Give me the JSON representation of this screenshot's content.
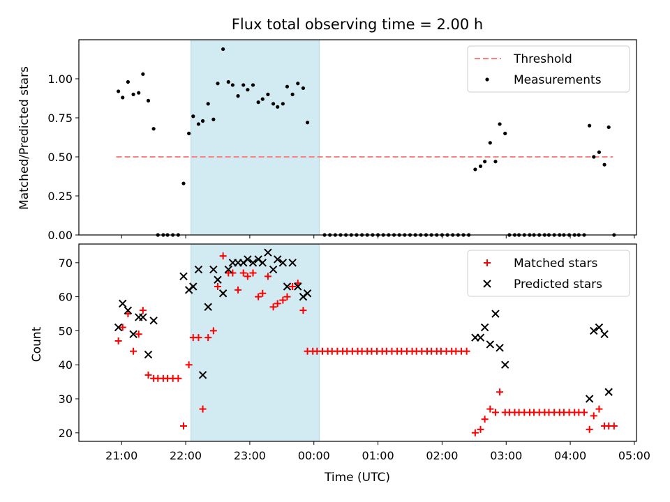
{
  "figure": {
    "title": "Flux total observing time = 2.00 h"
  },
  "colors": {
    "threshold": "#ff7f7f",
    "span": "#add8e6",
    "matched": "#ff0000",
    "predicted": "#000000",
    "points": "#000000"
  },
  "chart_data": [
    {
      "type": "scatter",
      "ylabel": "Matched/Predicted stars",
      "ylim": [
        0,
        1.25
      ],
      "yticks": [
        "0.00",
        "0.25",
        "0.50",
        "0.75",
        "1.00"
      ],
      "xticks": [
        "21:00",
        "22:00",
        "23:00",
        "00:00",
        "01:00",
        "02:00",
        "03:00",
        "04:00",
        "05:00"
      ],
      "highlight_span": [
        "22:05",
        "00:05"
      ],
      "threshold": {
        "name": "Threshold",
        "y": 0.5,
        "x_range": [
          "20:55",
          "04:40"
        ]
      },
      "legend": {
        "position": "upper right",
        "entries": [
          "Threshold",
          "Measurements"
        ]
      },
      "series": [
        {
          "name": "Measurements",
          "points": [
            [
              "20:57",
              0.92
            ],
            [
              "21:01",
              0.88
            ],
            [
              "21:06",
              0.98
            ],
            [
              "21:11",
              0.9
            ],
            [
              "21:16",
              0.91
            ],
            [
              "21:20",
              1.03
            ],
            [
              "21:25",
              0.86
            ],
            [
              "21:30",
              0.68
            ],
            [
              "21:34",
              0
            ],
            [
              "21:39",
              0
            ],
            [
              "21:43",
              0
            ],
            [
              "21:48",
              0
            ],
            [
              "21:53",
              0
            ],
            [
              "21:58",
              0.33
            ],
            [
              "22:03",
              0.65
            ],
            [
              "22:07",
              0.76
            ],
            [
              "22:12",
              0.71
            ],
            [
              "22:16",
              0.73
            ],
            [
              "22:21",
              0.84
            ],
            [
              "22:26",
              0.74
            ],
            [
              "22:30",
              0.97
            ],
            [
              "22:35",
              1.19
            ],
            [
              "22:40",
              0.98
            ],
            [
              "22:44",
              0.96
            ],
            [
              "22:49",
              0.89
            ],
            [
              "22:54",
              0.96
            ],
            [
              "22:58",
              0.93
            ],
            [
              "23:03",
              0.96
            ],
            [
              "23:08",
              0.85
            ],
            [
              "23:12",
              0.87
            ],
            [
              "23:17",
              0.9
            ],
            [
              "23:22",
              0.84
            ],
            [
              "23:26",
              0.82
            ],
            [
              "23:31",
              0.84
            ],
            [
              "23:35",
              0.95
            ],
            [
              "23:40",
              0.9
            ],
            [
              "23:45",
              0.97
            ],
            [
              "23:50",
              0.94
            ],
            [
              "23:54",
              0.72
            ],
            [
              "00:10",
              0
            ],
            [
              "00:15",
              0
            ],
            [
              "00:20",
              0
            ],
            [
              "00:25",
              0
            ],
            [
              "00:30",
              0
            ],
            [
              "00:35",
              0
            ],
            [
              "00:40",
              0
            ],
            [
              "00:45",
              0
            ],
            [
              "00:50",
              0
            ],
            [
              "00:55",
              0
            ],
            [
              "01:00",
              0
            ],
            [
              "01:05",
              0
            ],
            [
              "01:10",
              0
            ],
            [
              "01:15",
              0
            ],
            [
              "01:20",
              0
            ],
            [
              "01:25",
              0
            ],
            [
              "01:30",
              0
            ],
            [
              "01:35",
              0
            ],
            [
              "01:40",
              0
            ],
            [
              "01:45",
              0
            ],
            [
              "01:50",
              0
            ],
            [
              "01:55",
              0
            ],
            [
              "02:00",
              0
            ],
            [
              "02:05",
              0
            ],
            [
              "02:10",
              0
            ],
            [
              "02:15",
              0
            ],
            [
              "02:20",
              0
            ],
            [
              "02:25",
              0
            ],
            [
              "02:31",
              0.42
            ],
            [
              "02:36",
              0.44
            ],
            [
              "02:40",
              0.47
            ],
            [
              "02:45",
              0.59
            ],
            [
              "02:50",
              0.47
            ],
            [
              "02:54",
              0.71
            ],
            [
              "02:59",
              0.65
            ],
            [
              "03:03",
              0
            ],
            [
              "03:08",
              0
            ],
            [
              "03:12",
              0
            ],
            [
              "03:17",
              0
            ],
            [
              "03:22",
              0
            ],
            [
              "03:26",
              0
            ],
            [
              "03:31",
              0
            ],
            [
              "03:36",
              0
            ],
            [
              "03:40",
              0
            ],
            [
              "03:45",
              0
            ],
            [
              "03:50",
              0
            ],
            [
              "03:54",
              0
            ],
            [
              "03:59",
              0
            ],
            [
              "04:04",
              0
            ],
            [
              "04:08",
              0
            ],
            [
              "04:13",
              0
            ],
            [
              "04:18",
              0.7
            ],
            [
              "04:22",
              0.5
            ],
            [
              "04:27",
              0.53
            ],
            [
              "04:32",
              0.45
            ],
            [
              "04:36",
              0.69
            ],
            [
              "04:41",
              0
            ]
          ]
        }
      ]
    },
    {
      "type": "scatter",
      "xlabel": "Time (UTC)",
      "ylabel": "Count",
      "ylim": [
        17.5,
        75.5
      ],
      "yticks": [
        "20",
        "30",
        "40",
        "50",
        "60",
        "70"
      ],
      "xticks": [
        "21:00",
        "22:00",
        "23:00",
        "00:00",
        "01:00",
        "02:00",
        "03:00",
        "04:00",
        "05:00"
      ],
      "highlight_span": [
        "22:05",
        "00:05"
      ],
      "legend": {
        "position": "upper right",
        "entries": [
          "Matched stars",
          "Predicted stars"
        ]
      },
      "series": [
        {
          "name": "Matched stars",
          "points": [
            [
              "20:57",
              47
            ],
            [
              "21:01",
              51
            ],
            [
              "21:06",
              55
            ],
            [
              "21:11",
              44
            ],
            [
              "21:16",
              49
            ],
            [
              "21:20",
              56
            ],
            [
              "21:25",
              37
            ],
            [
              "21:30",
              36
            ],
            [
              "21:34",
              36
            ],
            [
              "21:39",
              36
            ],
            [
              "21:43",
              36
            ],
            [
              "21:48",
              36
            ],
            [
              "21:53",
              36
            ],
            [
              "21:58",
              22
            ],
            [
              "22:03",
              40
            ],
            [
              "22:07",
              48
            ],
            [
              "22:12",
              48
            ],
            [
              "22:16",
              27
            ],
            [
              "22:21",
              48
            ],
            [
              "22:26",
              50
            ],
            [
              "22:30",
              63
            ],
            [
              "22:35",
              72
            ],
            [
              "22:40",
              67
            ],
            [
              "22:44",
              67
            ],
            [
              "22:49",
              62
            ],
            [
              "22:54",
              67
            ],
            [
              "22:58",
              66
            ],
            [
              "23:03",
              67
            ],
            [
              "23:08",
              60
            ],
            [
              "23:12",
              61
            ],
            [
              "23:17",
              66
            ],
            [
              "23:22",
              57
            ],
            [
              "23:26",
              58
            ],
            [
              "23:31",
              59
            ],
            [
              "23:35",
              60
            ],
            [
              "23:40",
              63
            ],
            [
              "23:45",
              64
            ],
            [
              "23:50",
              56
            ],
            [
              "23:54",
              44
            ],
            [
              "23:59",
              44
            ],
            [
              "00:03",
              44
            ],
            [
              "00:08",
              44
            ],
            [
              "00:13",
              44
            ],
            [
              "00:17",
              44
            ],
            [
              "00:22",
              44
            ],
            [
              "00:27",
              44
            ],
            [
              "00:31",
              44
            ],
            [
              "00:36",
              44
            ],
            [
              "00:41",
              44
            ],
            [
              "00:45",
              44
            ],
            [
              "00:50",
              44
            ],
            [
              "00:54",
              44
            ],
            [
              "00:59",
              44
            ],
            [
              "01:04",
              44
            ],
            [
              "01:08",
              44
            ],
            [
              "01:13",
              44
            ],
            [
              "01:18",
              44
            ],
            [
              "01:22",
              44
            ],
            [
              "01:27",
              44
            ],
            [
              "01:32",
              44
            ],
            [
              "01:36",
              44
            ],
            [
              "01:41",
              44
            ],
            [
              "01:46",
              44
            ],
            [
              "01:50",
              44
            ],
            [
              "01:55",
              44
            ],
            [
              "01:59",
              44
            ],
            [
              "02:04",
              44
            ],
            [
              "02:09",
              44
            ],
            [
              "02:13",
              44
            ],
            [
              "02:18",
              44
            ],
            [
              "02:23",
              44
            ],
            [
              "02:31",
              20
            ],
            [
              "02:36",
              21
            ],
            [
              "02:40",
              24
            ],
            [
              "02:45",
              27
            ],
            [
              "02:50",
              26
            ],
            [
              "02:54",
              32
            ],
            [
              "02:59",
              26
            ],
            [
              "03:03",
              26
            ],
            [
              "03:08",
              26
            ],
            [
              "03:12",
              26
            ],
            [
              "03:17",
              26
            ],
            [
              "03:22",
              26
            ],
            [
              "03:26",
              26
            ],
            [
              "03:31",
              26
            ],
            [
              "03:36",
              26
            ],
            [
              "03:40",
              26
            ],
            [
              "03:45",
              26
            ],
            [
              "03:50",
              26
            ],
            [
              "03:54",
              26
            ],
            [
              "03:59",
              26
            ],
            [
              "04:04",
              26
            ],
            [
              "04:08",
              26
            ],
            [
              "04:13",
              26
            ],
            [
              "04:18",
              21
            ],
            [
              "04:22",
              25
            ],
            [
              "04:27",
              27
            ],
            [
              "04:32",
              22
            ],
            [
              "04:36",
              22
            ],
            [
              "04:41",
              22
            ]
          ]
        },
        {
          "name": "Predicted stars",
          "points": [
            [
              "20:57",
              51
            ],
            [
              "21:01",
              58
            ],
            [
              "21:06",
              56
            ],
            [
              "21:11",
              49
            ],
            [
              "21:16",
              54
            ],
            [
              "21:20",
              54
            ],
            [
              "21:25",
              43
            ],
            [
              "21:30",
              53
            ],
            [
              "21:58",
              66
            ],
            [
              "22:03",
              62
            ],
            [
              "22:07",
              63
            ],
            [
              "22:12",
              68
            ],
            [
              "22:16",
              37
            ],
            [
              "22:21",
              57
            ],
            [
              "22:26",
              68
            ],
            [
              "22:30",
              65
            ],
            [
              "22:35",
              61
            ],
            [
              "22:40",
              68
            ],
            [
              "22:44",
              70
            ],
            [
              "22:49",
              70
            ],
            [
              "22:54",
              70
            ],
            [
              "22:58",
              71
            ],
            [
              "23:03",
              70
            ],
            [
              "23:08",
              71
            ],
            [
              "23:12",
              70
            ],
            [
              "23:17",
              73
            ],
            [
              "23:22",
              68
            ],
            [
              "23:26",
              71
            ],
            [
              "23:31",
              70
            ],
            [
              "23:35",
              63
            ],
            [
              "23:40",
              70
            ],
            [
              "23:45",
              63
            ],
            [
              "23:50",
              60
            ],
            [
              "23:54",
              61
            ],
            [
              "02:31",
              48
            ],
            [
              "02:36",
              48
            ],
            [
              "02:40",
              51
            ],
            [
              "02:45",
              46
            ],
            [
              "02:50",
              55
            ],
            [
              "02:54",
              45
            ],
            [
              "02:59",
              40
            ],
            [
              "04:18",
              30
            ],
            [
              "04:22",
              50
            ],
            [
              "04:27",
              51
            ],
            [
              "04:32",
              49
            ],
            [
              "04:36",
              32
            ]
          ]
        }
      ]
    }
  ]
}
